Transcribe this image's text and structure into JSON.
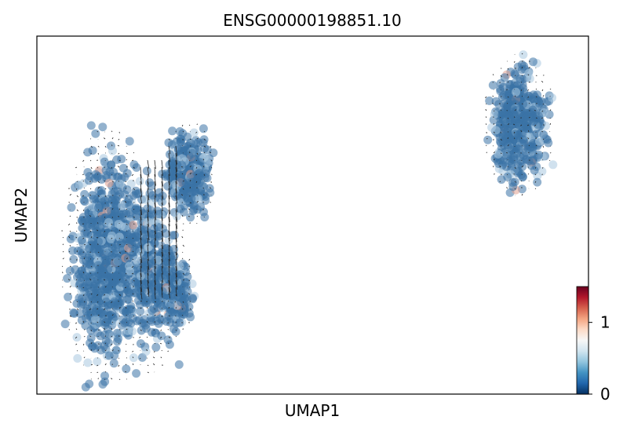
{
  "chart_data": {
    "type": "scatter",
    "title": "ENSG00000198851.10",
    "xlabel": "UMAP1",
    "ylabel": "UMAP2",
    "x_ticks": [],
    "y_ticks": [],
    "grid": false,
    "overlay": "velocity-stream-arrows",
    "colorbar": {
      "colormap": "RdBu_r",
      "range": [
        0,
        1.5
      ],
      "ticks": [
        "0",
        "1"
      ],
      "colors": [
        "#053061",
        "#2166ac",
        "#4393c3",
        "#92c5de",
        "#d1e5f0",
        "#f7f7f7",
        "#fddbc7",
        "#f4a582",
        "#d6604d",
        "#b2182b",
        "#67001f"
      ]
    },
    "point_color": "#3b73a6",
    "point_color_light": "#a9c8e0",
    "point_color_high": "#e0a090",
    "arrow_color": "#222222"
  }
}
